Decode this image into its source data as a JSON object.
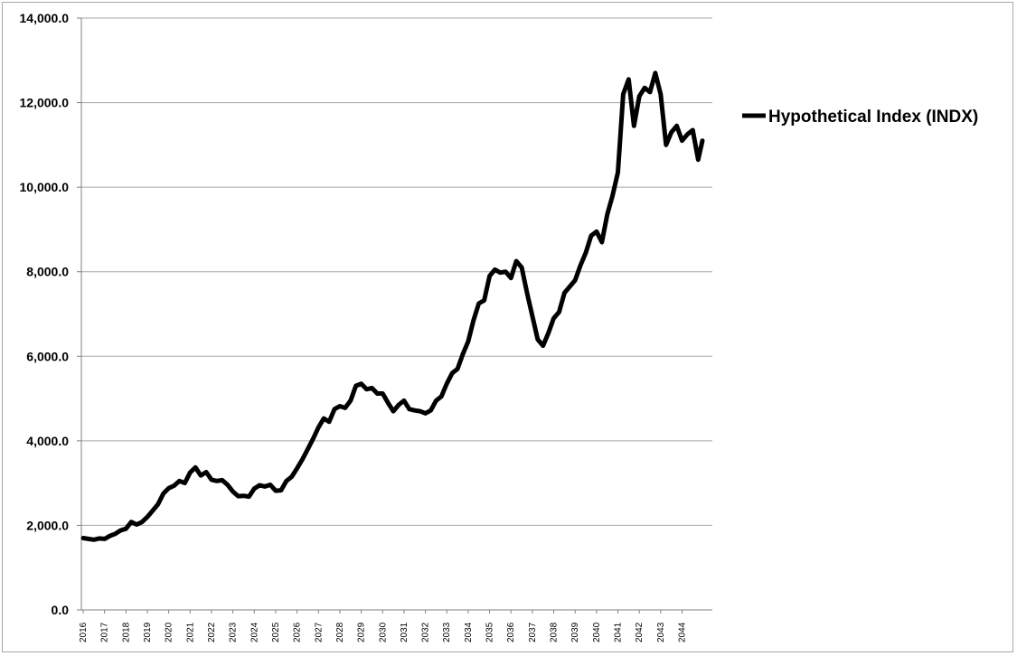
{
  "chart_data": {
    "type": "line",
    "title": "",
    "xlabel": "",
    "ylabel": "",
    "ylim": [
      0,
      14000
    ],
    "y_ticks": [
      "0.0",
      "2,000.0",
      "4,000.0",
      "6,000.0",
      "8,000.0",
      "10,000.0",
      "12,000.0",
      "14,000.0"
    ],
    "x_ticks": [
      "2016",
      "2017",
      "2018",
      "2019",
      "2020",
      "2021",
      "2022",
      "2023",
      "2024",
      "2025",
      "2026",
      "2027",
      "2028",
      "2029",
      "2030",
      "2031",
      "2032",
      "2033",
      "2034",
      "2035",
      "2036",
      "2037",
      "2038",
      "2039",
      "2040",
      "2041",
      "2042",
      "2043",
      "2044"
    ],
    "grid": "horizontal",
    "legend_position": "right",
    "line_color": "#000000",
    "series": [
      {
        "name": "Hypothetical Index (INDX)",
        "points": [
          [
            2016.0,
            1700
          ],
          [
            2016.25,
            1680
          ],
          [
            2016.5,
            1660
          ],
          [
            2016.75,
            1690
          ],
          [
            2017.0,
            1680
          ],
          [
            2017.25,
            1750
          ],
          [
            2017.5,
            1800
          ],
          [
            2017.75,
            1880
          ],
          [
            2018.0,
            1920
          ],
          [
            2018.25,
            2080
          ],
          [
            2018.5,
            2020
          ],
          [
            2018.75,
            2080
          ],
          [
            2019.0,
            2200
          ],
          [
            2019.25,
            2350
          ],
          [
            2019.5,
            2500
          ],
          [
            2019.75,
            2750
          ],
          [
            2020.0,
            2880
          ],
          [
            2020.25,
            2940
          ],
          [
            2020.5,
            3050
          ],
          [
            2020.75,
            3000
          ],
          [
            2021.0,
            3250
          ],
          [
            2021.25,
            3370
          ],
          [
            2021.5,
            3180
          ],
          [
            2021.75,
            3260
          ],
          [
            2022.0,
            3080
          ],
          [
            2022.25,
            3050
          ],
          [
            2022.5,
            3070
          ],
          [
            2022.75,
            2960
          ],
          [
            2023.0,
            2800
          ],
          [
            2023.25,
            2690
          ],
          [
            2023.5,
            2700
          ],
          [
            2023.75,
            2680
          ],
          [
            2024.0,
            2870
          ],
          [
            2024.25,
            2950
          ],
          [
            2024.5,
            2920
          ],
          [
            2024.75,
            2960
          ],
          [
            2025.0,
            2820
          ],
          [
            2025.25,
            2830
          ],
          [
            2025.5,
            3050
          ],
          [
            2025.75,
            3150
          ],
          [
            2026.0,
            3350
          ],
          [
            2026.25,
            3560
          ],
          [
            2026.5,
            3800
          ],
          [
            2026.75,
            4050
          ],
          [
            2027.0,
            4320
          ],
          [
            2027.25,
            4530
          ],
          [
            2027.5,
            4450
          ],
          [
            2027.75,
            4750
          ],
          [
            2028.0,
            4820
          ],
          [
            2028.25,
            4780
          ],
          [
            2028.5,
            4950
          ],
          [
            2028.75,
            5300
          ],
          [
            2029.0,
            5350
          ],
          [
            2029.25,
            5220
          ],
          [
            2029.5,
            5250
          ],
          [
            2029.75,
            5120
          ],
          [
            2030.0,
            5120
          ],
          [
            2030.25,
            4900
          ],
          [
            2030.5,
            4700
          ],
          [
            2030.75,
            4850
          ],
          [
            2031.0,
            4950
          ],
          [
            2031.25,
            4750
          ],
          [
            2031.5,
            4720
          ],
          [
            2031.75,
            4700
          ],
          [
            2032.0,
            4650
          ],
          [
            2032.25,
            4720
          ],
          [
            2032.5,
            4950
          ],
          [
            2032.75,
            5050
          ],
          [
            2033.0,
            5350
          ],
          [
            2033.25,
            5600
          ],
          [
            2033.5,
            5700
          ],
          [
            2033.75,
            6050
          ],
          [
            2034.0,
            6350
          ],
          [
            2034.25,
            6850
          ],
          [
            2034.5,
            7250
          ],
          [
            2034.75,
            7320
          ],
          [
            2035.0,
            7900
          ],
          [
            2035.25,
            8050
          ],
          [
            2035.5,
            7980
          ],
          [
            2035.75,
            8000
          ],
          [
            2036.0,
            7850
          ],
          [
            2036.25,
            8250
          ],
          [
            2036.5,
            8100
          ],
          [
            2036.75,
            7500
          ],
          [
            2037.0,
            6950
          ],
          [
            2037.25,
            6400
          ],
          [
            2037.5,
            6250
          ],
          [
            2037.75,
            6550
          ],
          [
            2038.0,
            6900
          ],
          [
            2038.25,
            7050
          ],
          [
            2038.5,
            7500
          ],
          [
            2038.75,
            7650
          ],
          [
            2039.0,
            7800
          ],
          [
            2039.25,
            8150
          ],
          [
            2039.5,
            8450
          ],
          [
            2039.75,
            8850
          ],
          [
            2040.0,
            8950
          ],
          [
            2040.25,
            8700
          ],
          [
            2040.5,
            9350
          ],
          [
            2040.75,
            9800
          ],
          [
            2041.0,
            10350
          ],
          [
            2041.25,
            12200
          ],
          [
            2041.5,
            12550
          ],
          [
            2041.75,
            11450
          ],
          [
            2042.0,
            12150
          ],
          [
            2042.25,
            12350
          ],
          [
            2042.5,
            12250
          ],
          [
            2042.75,
            12700
          ],
          [
            2043.0,
            12200
          ],
          [
            2043.25,
            11000
          ],
          [
            2043.5,
            11300
          ],
          [
            2043.75,
            11450
          ],
          [
            2044.0,
            11100
          ],
          [
            2044.25,
            11250
          ],
          [
            2044.5,
            11350
          ],
          [
            2044.75,
            10650
          ],
          [
            2044.95,
            11100
          ]
        ]
      }
    ]
  }
}
